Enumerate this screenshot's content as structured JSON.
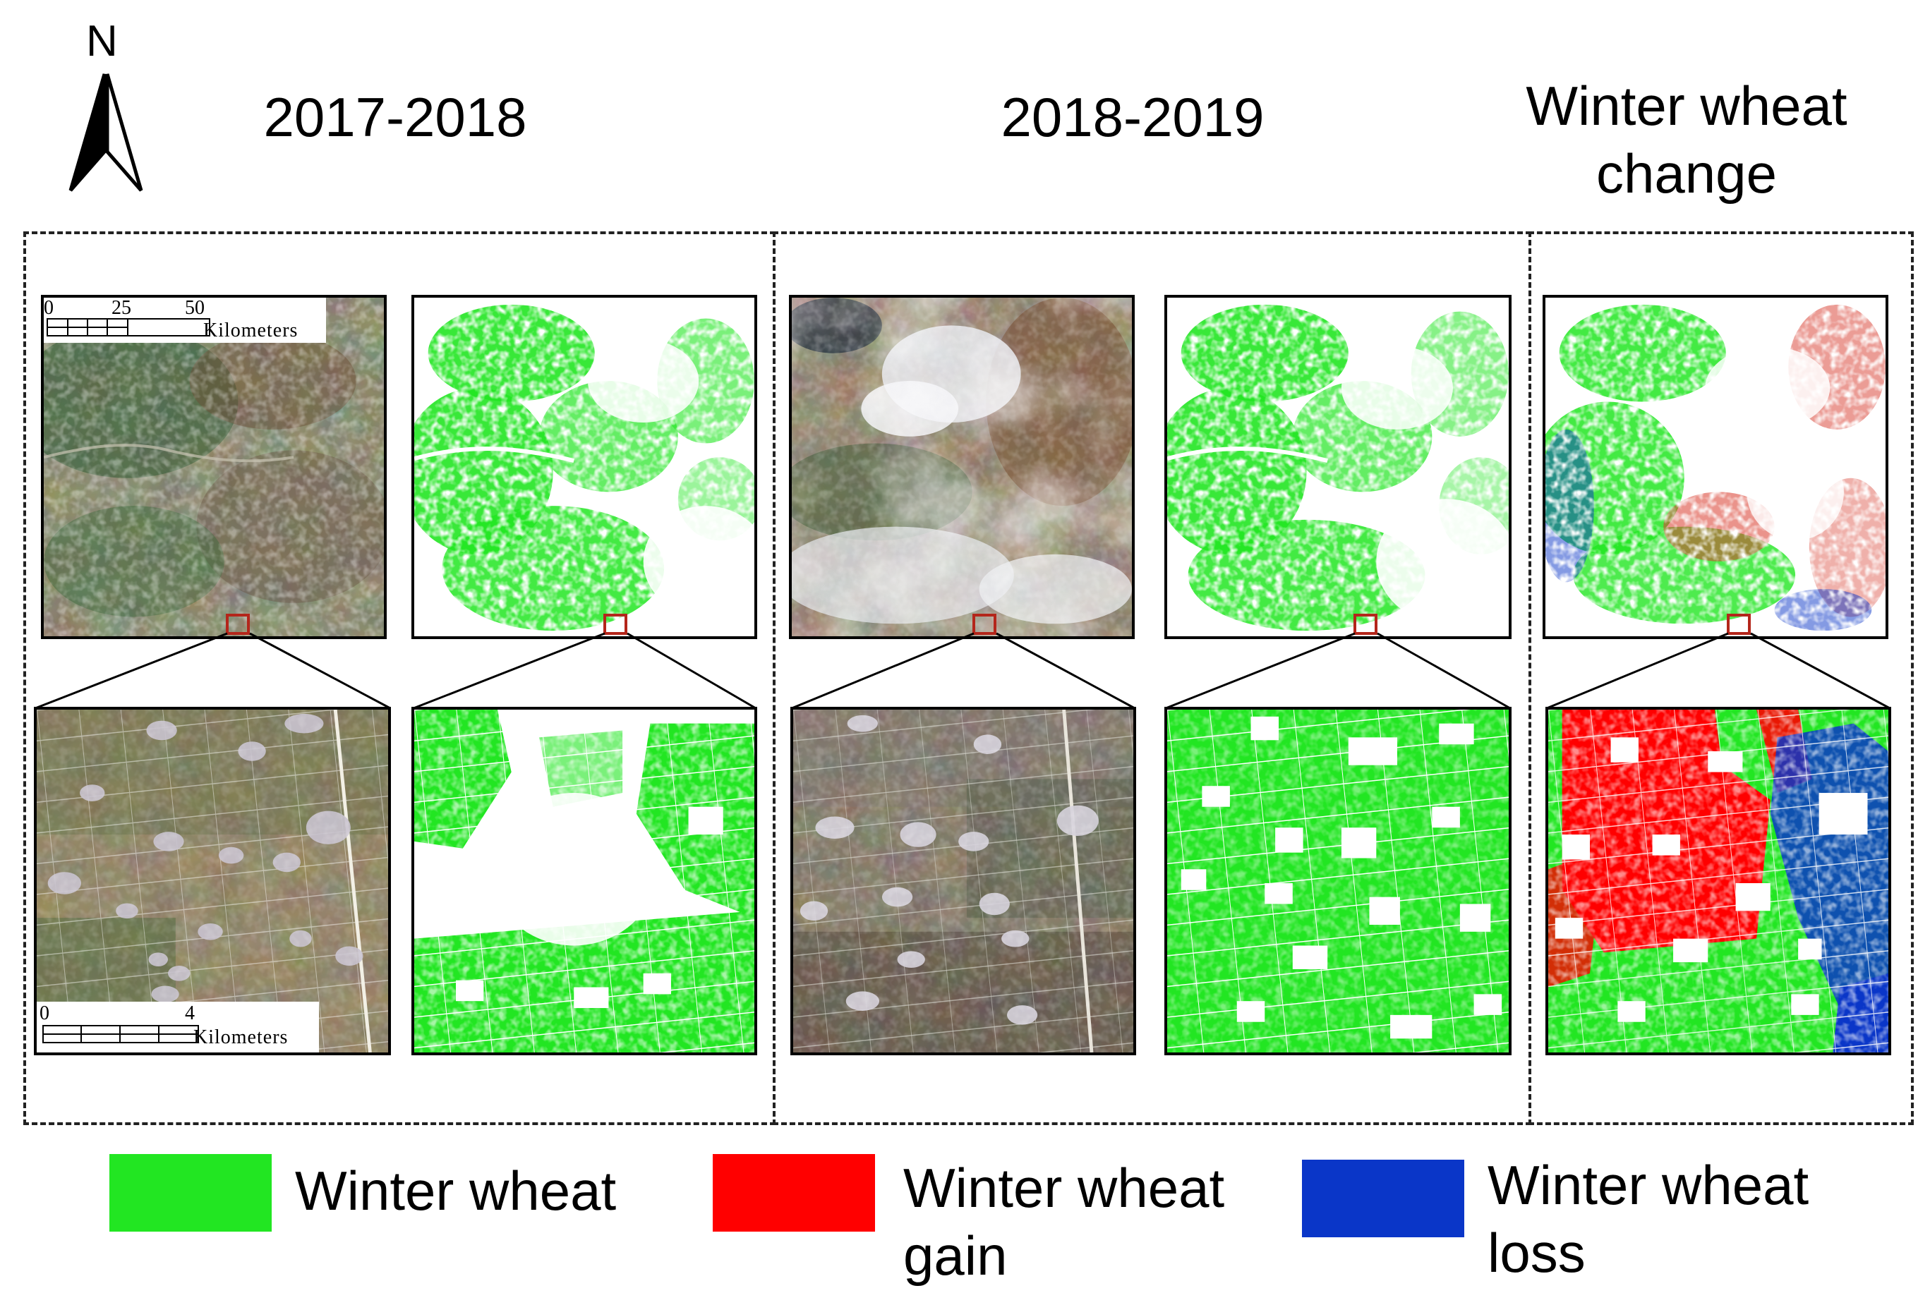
{
  "north_arrow": {
    "letter": "N",
    "icon": "north-arrow-icon"
  },
  "columns": [
    {
      "title": "2017-2018"
    },
    {
      "title": "2018-2019"
    },
    {
      "title_line1": "Winter wheat",
      "title_line2": "change"
    }
  ],
  "scalebars": {
    "overview": {
      "ticks": [
        "0",
        "25",
        "50"
      ],
      "unit": "Kilometers"
    },
    "detail": {
      "ticks": [
        "0",
        "4"
      ],
      "unit": "Kilometers"
    }
  },
  "legend": [
    {
      "label_line1": "Winter wheat",
      "label_line2": "",
      "color": "#22e622"
    },
    {
      "label_line1": "Winter wheat",
      "label_line2": "gain",
      "color": "#ff0000"
    },
    {
      "label_line1": "Winter wheat",
      "label_line2": "loss",
      "color": "#0a36c8"
    }
  ],
  "colors": {
    "wheat": "#22e622",
    "gain": "#ff0000",
    "loss": "#0a36c8",
    "roi_box": "#b4261b",
    "background": "#ffffff"
  }
}
